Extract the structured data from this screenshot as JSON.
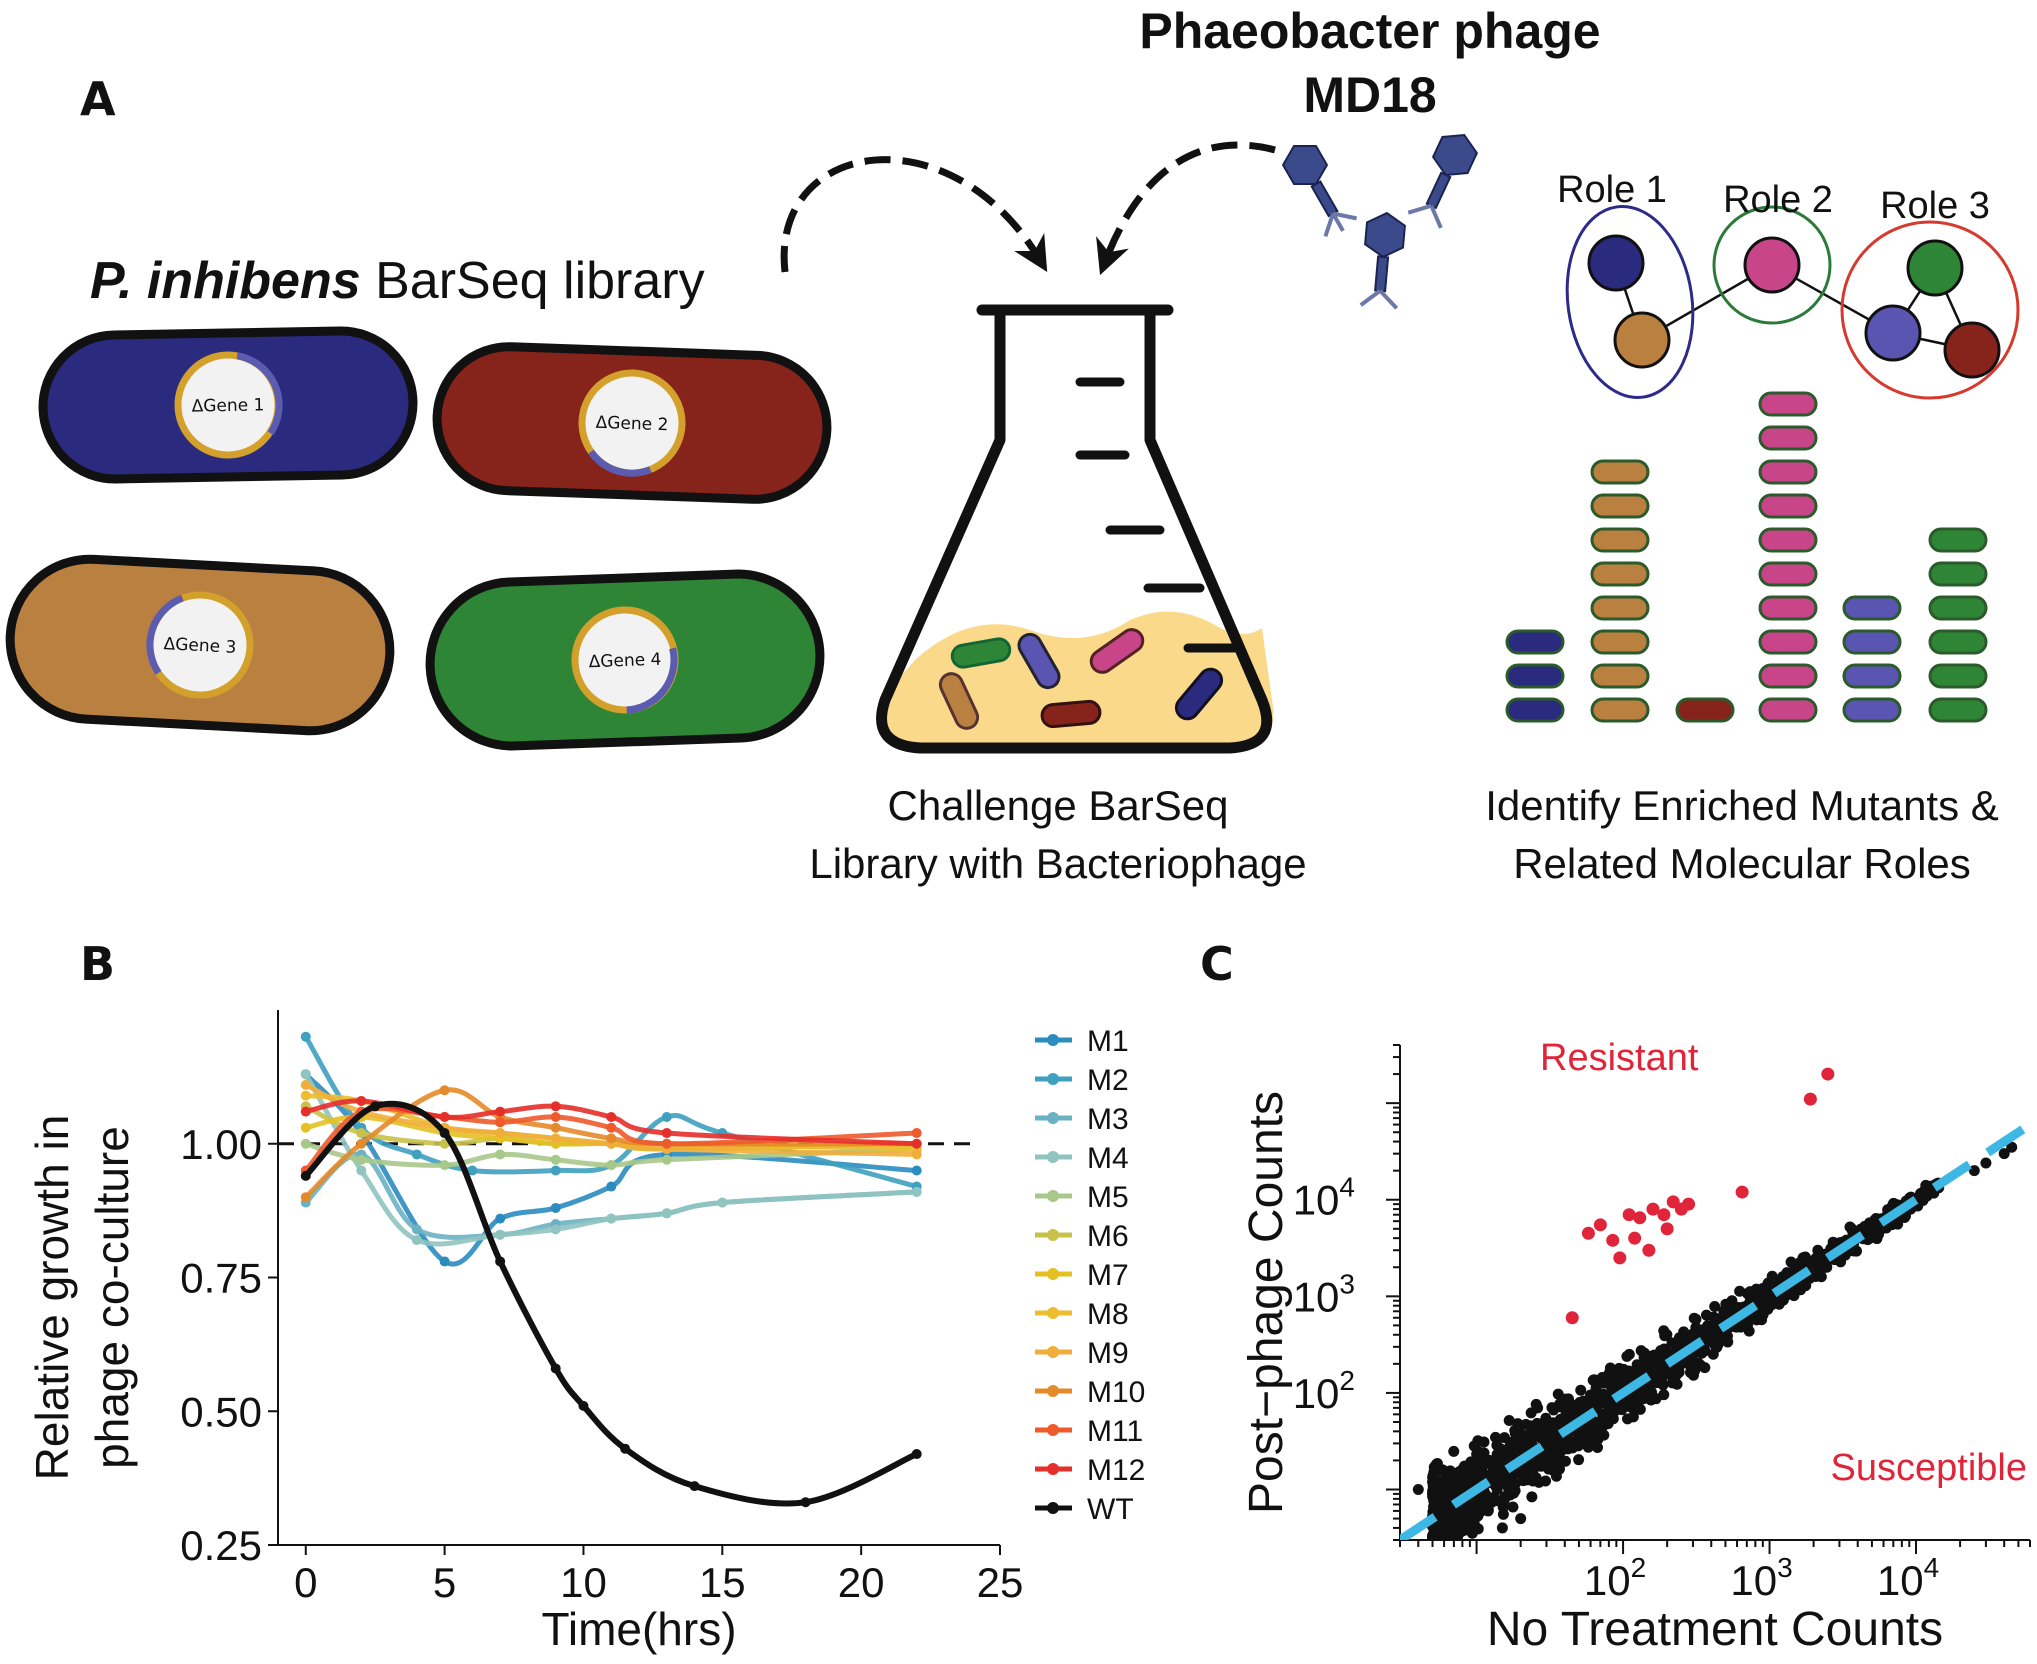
{
  "panel_labels": {
    "a": "A",
    "b": "B",
    "c": "C"
  },
  "panel_a": {
    "library_title_italic": "P. inhibens",
    "library_title_rest": " BarSeq library",
    "phage_title_line1": "Phaeobacter phage",
    "phage_title_line2": "MD18",
    "cells": [
      {
        "label": "ΔGene 1",
        "color": "#2a2a7e"
      },
      {
        "label": "ΔGene 2",
        "color": "#86241c"
      },
      {
        "label": "ΔGene 3",
        "color": "#ba8040"
      },
      {
        "label": "ΔGene 4",
        "color": "#2f8536"
      }
    ],
    "roles": [
      {
        "label": "Role 1",
        "color": "#2d2a8a"
      },
      {
        "label": "Role 2",
        "color": "#2b7a3a"
      },
      {
        "label": "Role 3",
        "color": "#d63a2e"
      }
    ],
    "flask_caption_line1": "Challenge BarSeq",
    "flask_caption_line2": "Library with Bacteriophage",
    "roles_caption_line1": "Identify Enriched Mutants &",
    "roles_caption_line2": "Related Molecular Roles",
    "enrichment_stacks": [
      {
        "color": "#2a2a7e",
        "count": 3
      },
      {
        "color": "#ba8040",
        "count": 8
      },
      {
        "color": "#86241c",
        "count": 1
      },
      {
        "color": "#c8458a",
        "count": 10
      },
      {
        "color": "#5a55b0",
        "count": 4
      },
      {
        "color": "#2f8536",
        "count": 6
      }
    ]
  },
  "chart_data": [
    {
      "type": "line",
      "panel": "B",
      "xlabel": "Time(hrs)",
      "ylabel_line1": "Relative growth in",
      "ylabel_line2": "phage co-culture",
      "xlim": [
        -1,
        25
      ],
      "ylim": [
        0.25,
        1.25
      ],
      "x_ticks": [
        "0",
        "5",
        "10",
        "15",
        "20",
        "25"
      ],
      "y_ticks": [
        "0.25",
        "0.50",
        "0.75",
        "1.00"
      ],
      "reference_line": 1.0,
      "legend_position": "right",
      "series": [
        {
          "name": "M1",
          "color": "#2b8cbf",
          "x": [
            0,
            2,
            5,
            7,
            9,
            11,
            13,
            22
          ],
          "y": [
            1.13,
            1.02,
            0.78,
            0.86,
            0.88,
            0.92,
            0.98,
            0.95
          ]
        },
        {
          "name": "M2",
          "color": "#3fa0c0",
          "x": [
            0,
            2,
            4,
            6,
            9,
            11,
            13,
            15,
            22
          ],
          "y": [
            1.2,
            1.03,
            0.98,
            0.95,
            0.95,
            0.96,
            1.05,
            1.02,
            0.92
          ]
        },
        {
          "name": "M3",
          "color": "#6ab1c4",
          "x": [
            0,
            2,
            4,
            7,
            9,
            11,
            13,
            15,
            22
          ],
          "y": [
            0.89,
            0.98,
            0.84,
            0.83,
            0.85,
            0.86,
            0.87,
            0.89,
            0.91
          ]
        },
        {
          "name": "M4",
          "color": "#90c4c0",
          "x": [
            0,
            2,
            4,
            7,
            9,
            11,
            13,
            15,
            22
          ],
          "y": [
            1.13,
            0.95,
            0.82,
            0.83,
            0.84,
            0.86,
            0.87,
            0.89,
            0.91
          ]
        },
        {
          "name": "M5",
          "color": "#a8c889",
          "x": [
            0,
            2,
            5,
            7,
            9,
            11,
            13,
            22
          ],
          "y": [
            1.0,
            0.97,
            0.96,
            0.98,
            0.97,
            0.96,
            0.97,
            0.99
          ]
        },
        {
          "name": "M6",
          "color": "#c9c24a",
          "x": [
            0,
            2,
            5,
            7,
            9,
            11,
            13,
            22
          ],
          "y": [
            1.07,
            1.02,
            1.0,
            1.01,
            1.0,
            1.0,
            0.99,
            1.0
          ]
        },
        {
          "name": "M7",
          "color": "#e4c023",
          "x": [
            0,
            2,
            5,
            7,
            9,
            11,
            13,
            22
          ],
          "y": [
            1.03,
            1.05,
            1.02,
            1.01,
            1.0,
            1.0,
            0.99,
            1.0
          ]
        },
        {
          "name": "M8",
          "color": "#ecbd2d",
          "x": [
            0,
            2,
            5,
            7,
            9,
            11,
            13,
            22
          ],
          "y": [
            1.09,
            1.08,
            1.03,
            1.02,
            1.01,
            1.0,
            1.0,
            0.99
          ]
        },
        {
          "name": "M9",
          "color": "#efae3a",
          "x": [
            0,
            2,
            5,
            7,
            9,
            11,
            13,
            22
          ],
          "y": [
            1.11,
            1.06,
            1.03,
            1.02,
            1.01,
            1.0,
            0.99,
            0.98
          ]
        },
        {
          "name": "M10",
          "color": "#e58a2a",
          "x": [
            0,
            2,
            5,
            7,
            9,
            11,
            13,
            22
          ],
          "y": [
            0.9,
            1.0,
            1.1,
            1.05,
            1.03,
            1.01,
            1.0,
            1.0
          ]
        },
        {
          "name": "M11",
          "color": "#ee5a2c",
          "x": [
            0,
            2,
            5,
            7,
            9,
            11,
            13,
            22
          ],
          "y": [
            0.95,
            1.06,
            1.05,
            1.04,
            1.05,
            1.03,
            1.0,
            1.02
          ]
        },
        {
          "name": "M12",
          "color": "#e62e2a",
          "x": [
            0,
            2,
            5,
            7,
            9,
            11,
            13,
            22
          ],
          "y": [
            1.06,
            1.08,
            1.05,
            1.06,
            1.07,
            1.05,
            1.02,
            1.0
          ]
        },
        {
          "name": "WT",
          "color": "#111111",
          "x": [
            0,
            2.5,
            5,
            7,
            9,
            10,
            11.5,
            14,
            18,
            22
          ],
          "y": [
            0.94,
            1.07,
            1.02,
            0.78,
            0.58,
            0.51,
            0.43,
            0.36,
            0.33,
            0.42
          ]
        }
      ]
    },
    {
      "type": "scatter",
      "panel": "C",
      "xlabel": "No Treatment Counts",
      "ylabel": "Post−phage Counts",
      "x_scale": "log",
      "y_scale": "log",
      "xlim": [
        3,
        60000
      ],
      "ylim": [
        3,
        400000
      ],
      "x_ticks": [
        {
          "base": "10",
          "exp": "2",
          "value": 100
        },
        {
          "base": "10",
          "exp": "3",
          "value": 1000
        },
        {
          "base": "10",
          "exp": "4",
          "value": 10000
        }
      ],
      "y_ticks": [
        {
          "base": "10",
          "exp": "2",
          "value": 100
        },
        {
          "base": "10",
          "exp": "3",
          "value": 1000
        },
        {
          "base": "10",
          "exp": "4",
          "value": 10000
        }
      ],
      "annotations": [
        {
          "text": "Resistant",
          "color": "#e0253a"
        },
        {
          "text": "Susceptible",
          "color": "#e0253a"
        }
      ],
      "fit_line": {
        "style": "dashed",
        "color": "#3db7e4",
        "slope": 1,
        "intercept": 0
      },
      "resistant_points": {
        "color": "#e0253a",
        "x": [
          2500,
          1900,
          650,
          280,
          250,
          220,
          190,
          160,
          130,
          110,
          85,
          70,
          58,
          45,
          150,
          200,
          95,
          120
        ],
        "y": [
          200000,
          110000,
          12000,
          9000,
          8000,
          9500,
          7000,
          8000,
          6500,
          7000,
          3800,
          5500,
          4500,
          600,
          3000,
          5000,
          2500,
          4000
        ]
      },
      "bulk_points": {
        "color": "#111111",
        "band_from_x": 5,
        "band_to_x": 15000,
        "extra_x": [
          25000,
          30000,
          40000,
          45000,
          8,
          10,
          12,
          15,
          20,
          6,
          7,
          4,
          5
        ],
        "extra_y": [
          20000,
          24000,
          30000,
          35000,
          5,
          4,
          6,
          4,
          5,
          12,
          14,
          10,
          9
        ]
      }
    }
  ]
}
